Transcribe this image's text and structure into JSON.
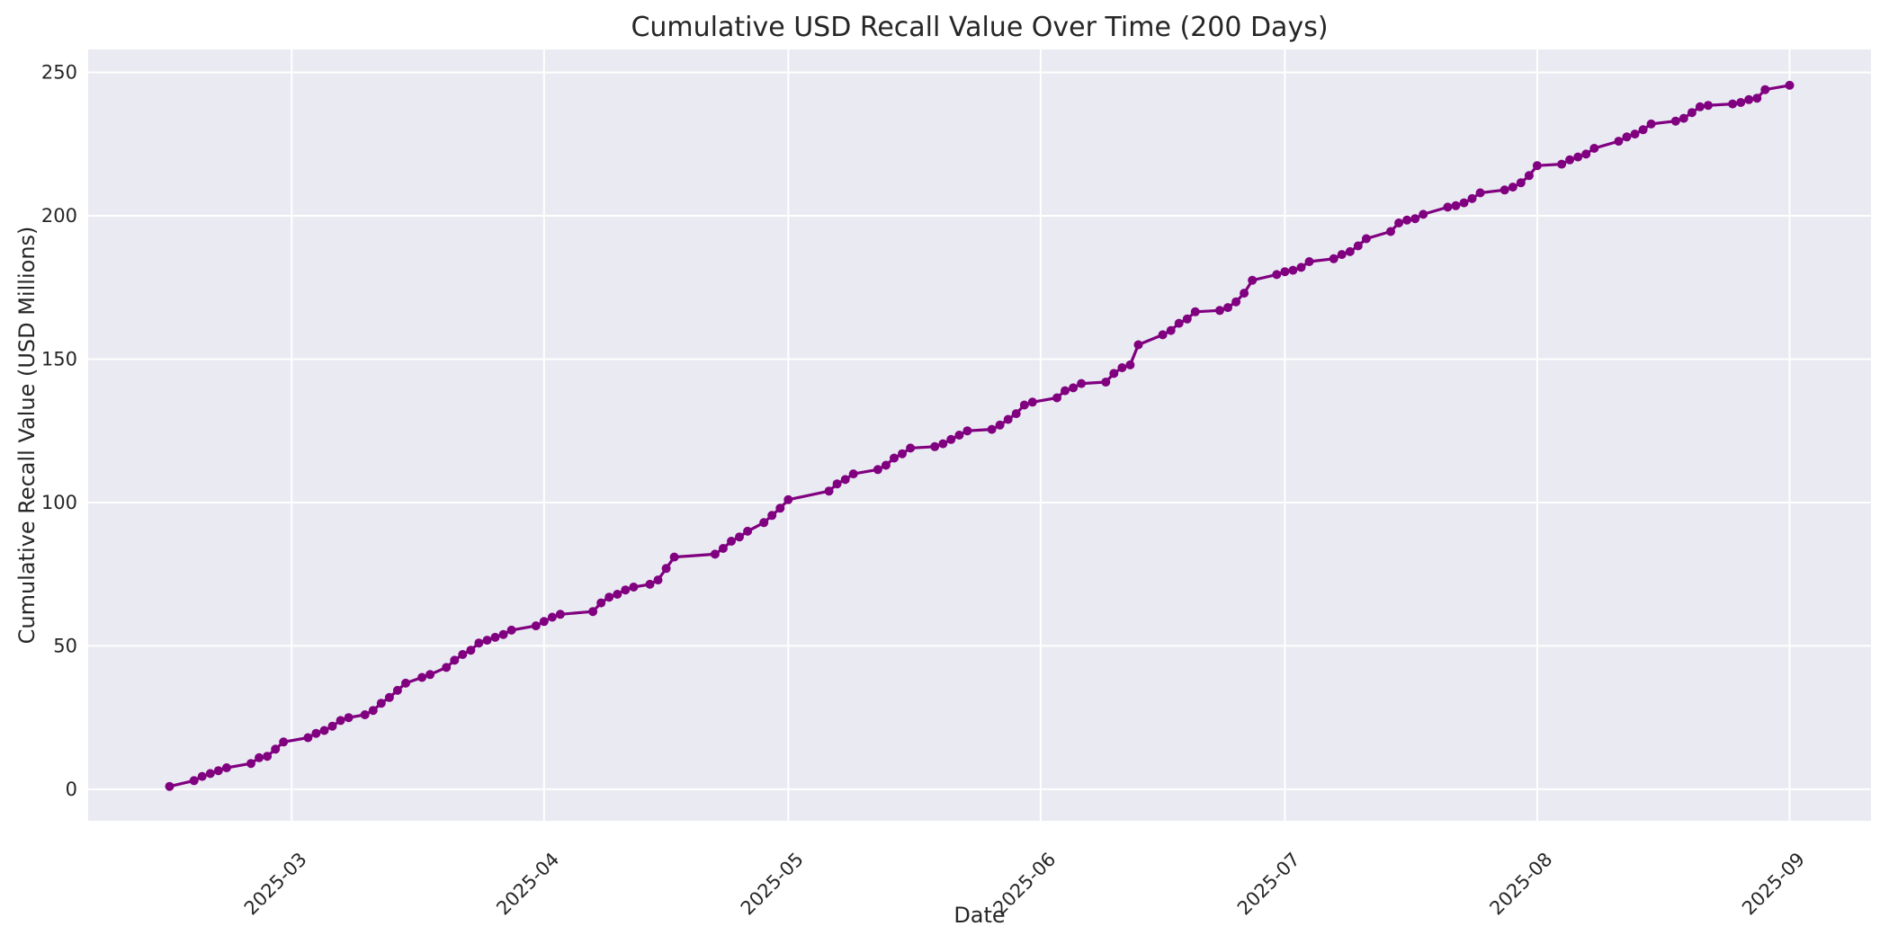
{
  "chart_data": {
    "type": "line",
    "title": "Cumulative USD Recall Value Over Time (200 Days)",
    "xlabel": "Date",
    "ylabel": "Cumulative Recall Value (USD Millions)",
    "grid": true,
    "legend": "none",
    "xlim": [
      "2025-02-04",
      "2025-09-11"
    ],
    "ylim": [
      -11,
      258
    ],
    "x_ticks": [
      {
        "value": "2025-03-01",
        "label": "2025-03"
      },
      {
        "value": "2025-04-01",
        "label": "2025-04"
      },
      {
        "value": "2025-05-01",
        "label": "2025-05"
      },
      {
        "value": "2025-06-01",
        "label": "2025-06"
      },
      {
        "value": "2025-07-01",
        "label": "2025-07"
      },
      {
        "value": "2025-08-01",
        "label": "2025-08"
      },
      {
        "value": "2025-09-01",
        "label": "2025-09"
      }
    ],
    "y_ticks": [
      0,
      50,
      100,
      150,
      200,
      250
    ],
    "style": {
      "fig_bg": "#ffffff",
      "plot_bg": "#EAEAF2",
      "grid_color": "#ffffff",
      "text_color": "#262626",
      "line_color": "#800080",
      "marker": "circle"
    },
    "series": [
      {
        "color": "#800080",
        "points": [
          [
            "2025-02-14",
            1
          ],
          [
            "2025-02-17",
            3
          ],
          [
            "2025-02-18",
            4.5
          ],
          [
            "2025-02-19",
            5.5
          ],
          [
            "2025-02-20",
            6.5
          ],
          [
            "2025-02-21",
            7.5
          ],
          [
            "2025-02-24",
            9
          ],
          [
            "2025-02-25",
            11
          ],
          [
            "2025-02-26",
            11.5
          ],
          [
            "2025-02-27",
            14
          ],
          [
            "2025-02-28",
            16.5
          ],
          [
            "2025-03-03",
            18
          ],
          [
            "2025-03-04",
            19.5
          ],
          [
            "2025-03-05",
            20.5
          ],
          [
            "2025-03-06",
            22
          ],
          [
            "2025-03-07",
            24
          ],
          [
            "2025-03-08",
            25
          ],
          [
            "2025-03-10",
            26
          ],
          [
            "2025-03-11",
            27.5
          ],
          [
            "2025-03-12",
            30
          ],
          [
            "2025-03-13",
            32
          ],
          [
            "2025-03-14",
            34.5
          ],
          [
            "2025-03-15",
            37
          ],
          [
            "2025-03-17",
            39
          ],
          [
            "2025-03-18",
            40
          ],
          [
            "2025-03-20",
            42.5
          ],
          [
            "2025-03-21",
            45
          ],
          [
            "2025-03-22",
            47
          ],
          [
            "2025-03-23",
            48.5
          ],
          [
            "2025-03-24",
            51
          ],
          [
            "2025-03-25",
            52
          ],
          [
            "2025-03-26",
            53
          ],
          [
            "2025-03-27",
            54
          ],
          [
            "2025-03-28",
            55.5
          ],
          [
            "2025-03-31",
            57
          ],
          [
            "2025-04-01",
            58.5
          ],
          [
            "2025-04-02",
            60
          ],
          [
            "2025-04-03",
            61
          ],
          [
            "2025-04-07",
            62
          ],
          [
            "2025-04-08",
            65
          ],
          [
            "2025-04-09",
            67
          ],
          [
            "2025-04-10",
            68
          ],
          [
            "2025-04-11",
            69.5
          ],
          [
            "2025-04-12",
            70.5
          ],
          [
            "2025-04-14",
            71.5
          ],
          [
            "2025-04-15",
            73
          ],
          [
            "2025-04-16",
            77
          ],
          [
            "2025-04-17",
            81
          ],
          [
            "2025-04-22",
            82
          ],
          [
            "2025-04-23",
            84
          ],
          [
            "2025-04-24",
            86.5
          ],
          [
            "2025-04-25",
            88
          ],
          [
            "2025-04-26",
            90
          ],
          [
            "2025-04-28",
            93
          ],
          [
            "2025-04-29",
            95.5
          ],
          [
            "2025-04-30",
            98
          ],
          [
            "2025-05-01",
            101
          ],
          [
            "2025-05-06",
            104
          ],
          [
            "2025-05-07",
            106.5
          ],
          [
            "2025-05-08",
            108
          ],
          [
            "2025-05-09",
            110
          ],
          [
            "2025-05-12",
            111.5
          ],
          [
            "2025-05-13",
            113
          ],
          [
            "2025-05-14",
            115.5
          ],
          [
            "2025-05-15",
            117
          ],
          [
            "2025-05-16",
            119
          ],
          [
            "2025-05-19",
            119.5
          ],
          [
            "2025-05-20",
            120.5
          ],
          [
            "2025-05-21",
            122
          ],
          [
            "2025-05-22",
            123.5
          ],
          [
            "2025-05-23",
            125
          ],
          [
            "2025-05-26",
            125.5
          ],
          [
            "2025-05-27",
            127
          ],
          [
            "2025-05-28",
            129
          ],
          [
            "2025-05-29",
            131
          ],
          [
            "2025-05-30",
            134
          ],
          [
            "2025-05-31",
            135
          ],
          [
            "2025-06-03",
            136.5
          ],
          [
            "2025-06-04",
            139
          ],
          [
            "2025-06-05",
            140
          ],
          [
            "2025-06-06",
            141.5
          ],
          [
            "2025-06-09",
            142
          ],
          [
            "2025-06-10",
            145
          ],
          [
            "2025-06-11",
            147
          ],
          [
            "2025-06-12",
            148
          ],
          [
            "2025-06-13",
            155
          ],
          [
            "2025-06-16",
            158.5
          ],
          [
            "2025-06-17",
            160
          ],
          [
            "2025-06-18",
            162.5
          ],
          [
            "2025-06-19",
            164
          ],
          [
            "2025-06-20",
            166.5
          ],
          [
            "2025-06-23",
            167
          ],
          [
            "2025-06-24",
            168
          ],
          [
            "2025-06-25",
            170
          ],
          [
            "2025-06-26",
            173
          ],
          [
            "2025-06-27",
            177.5
          ],
          [
            "2025-06-30",
            179.5
          ],
          [
            "2025-07-01",
            180.5
          ],
          [
            "2025-07-02",
            181
          ],
          [
            "2025-07-03",
            182
          ],
          [
            "2025-07-04",
            184
          ],
          [
            "2025-07-07",
            185
          ],
          [
            "2025-07-08",
            186.5
          ],
          [
            "2025-07-09",
            187.5
          ],
          [
            "2025-07-10",
            189.5
          ],
          [
            "2025-07-11",
            192
          ],
          [
            "2025-07-14",
            194.5
          ],
          [
            "2025-07-15",
            197.5
          ],
          [
            "2025-07-16",
            198.5
          ],
          [
            "2025-07-17",
            199
          ],
          [
            "2025-07-18",
            200.5
          ],
          [
            "2025-07-21",
            203
          ],
          [
            "2025-07-22",
            203.5
          ],
          [
            "2025-07-23",
            204.5
          ],
          [
            "2025-07-24",
            206
          ],
          [
            "2025-07-25",
            208
          ],
          [
            "2025-07-28",
            209
          ],
          [
            "2025-07-29",
            210
          ],
          [
            "2025-07-30",
            211.5
          ],
          [
            "2025-07-31",
            214
          ],
          [
            "2025-08-01",
            217.5
          ],
          [
            "2025-08-04",
            218
          ],
          [
            "2025-08-05",
            219.5
          ],
          [
            "2025-08-06",
            220.5
          ],
          [
            "2025-08-07",
            221.5
          ],
          [
            "2025-08-08",
            223.5
          ],
          [
            "2025-08-11",
            226
          ],
          [
            "2025-08-12",
            227.5
          ],
          [
            "2025-08-13",
            228.5
          ],
          [
            "2025-08-14",
            230
          ],
          [
            "2025-08-15",
            232
          ],
          [
            "2025-08-18",
            233
          ],
          [
            "2025-08-19",
            234
          ],
          [
            "2025-08-20",
            236
          ],
          [
            "2025-08-21",
            238
          ],
          [
            "2025-08-22",
            238.5
          ],
          [
            "2025-08-25",
            239
          ],
          [
            "2025-08-26",
            239.5
          ],
          [
            "2025-08-27",
            240.5
          ],
          [
            "2025-08-28",
            241
          ],
          [
            "2025-08-29",
            244
          ],
          [
            "2025-09-01",
            245.5
          ]
        ]
      }
    ]
  }
}
